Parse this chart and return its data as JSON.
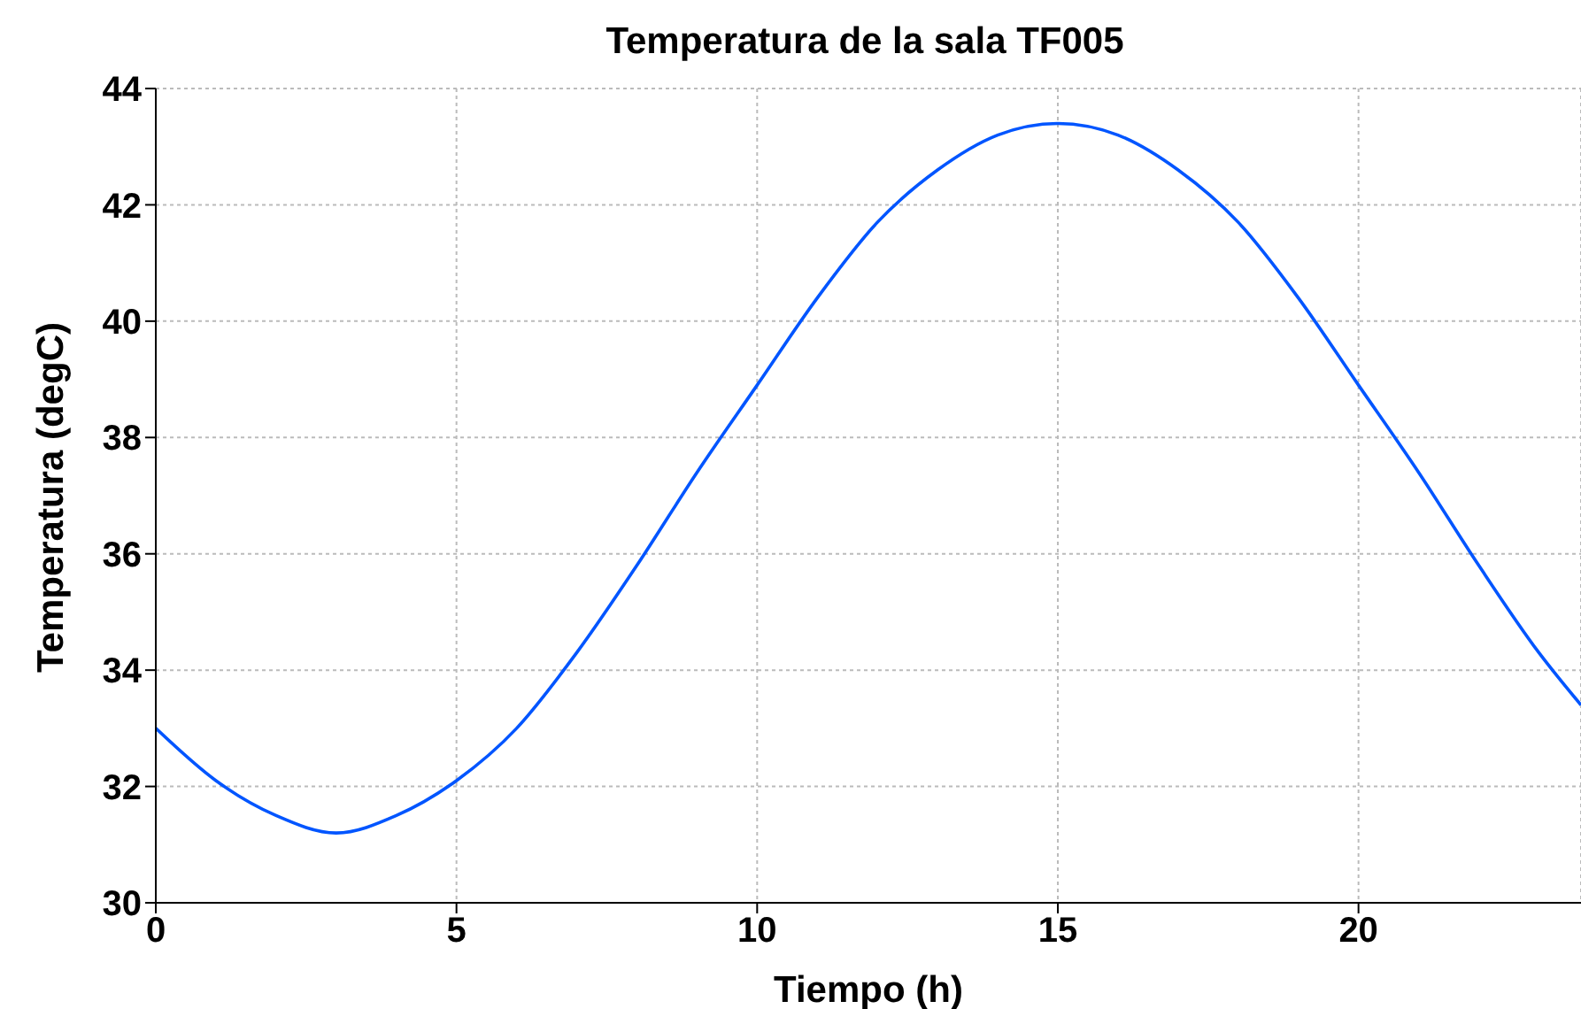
{
  "chart_data": {
    "type": "line",
    "title": "Temperatura de la sala TF005",
    "xlabel": "Tiempo (h)",
    "ylabel": "Temperatura (degC)",
    "x": [
      0,
      1,
      2,
      3,
      4,
      5,
      6,
      7,
      8,
      9,
      10,
      11,
      12,
      13,
      14,
      15,
      16,
      17,
      18,
      19,
      20,
      21,
      22,
      23,
      23.7
    ],
    "series": [
      {
        "color": "#0055ff",
        "values": [
          33.0,
          32.1,
          31.5,
          31.2,
          31.5,
          32.1,
          33.0,
          34.3,
          35.8,
          37.4,
          38.9,
          40.4,
          41.7,
          42.6,
          43.2,
          43.4,
          43.2,
          42.6,
          41.7,
          40.4,
          38.9,
          37.4,
          35.8,
          34.3,
          33.4
        ]
      }
    ],
    "xlim": [
      0,
      23.7
    ],
    "xticks": [
      0,
      5,
      10,
      15,
      20
    ],
    "ylim": [
      30,
      44
    ],
    "yticks": [
      30,
      32,
      34,
      36,
      38,
      40,
      42,
      44
    ],
    "grid": true,
    "legend": false,
    "marker": "none",
    "line_style": "solid"
  }
}
